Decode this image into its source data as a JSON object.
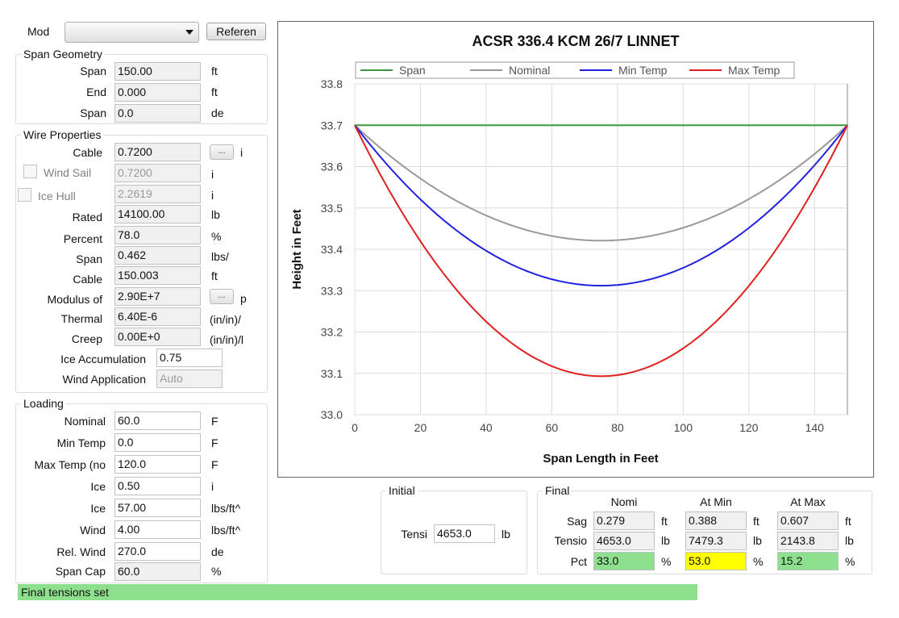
{
  "header": {
    "mode_label": "Mod",
    "mode_value": "",
    "reference_button": "Referen"
  },
  "span_geometry": {
    "title": "Span Geometry",
    "rows": [
      {
        "label": "Span",
        "value": "150.00",
        "unit": "ft"
      },
      {
        "label": "End",
        "value": "0.000",
        "unit": "ft"
      },
      {
        "label": "Span",
        "value": "0.0",
        "unit": "de"
      }
    ]
  },
  "wire_properties": {
    "title": "Wire Properties",
    "cable": {
      "label": "Cable",
      "value": "0.7200",
      "button": "...",
      "unit": "i"
    },
    "wind_sail": {
      "label": "Wind Sail",
      "value": "0.7200",
      "unit": "i"
    },
    "ice_hull": {
      "label": "Ice Hull",
      "value": "2.2619",
      "unit": "i"
    },
    "rated": {
      "label": "Rated",
      "value": "14100.00",
      "unit": "lb"
    },
    "percent": {
      "label": "Percent",
      "value": "78.0",
      "unit": "%"
    },
    "span": {
      "label": "Span",
      "value": "0.462",
      "unit": "lbs/"
    },
    "cable_len": {
      "label": "Cable",
      "value": "150.003",
      "unit": "ft"
    },
    "modulus": {
      "label": "Modulus of",
      "value": "2.90E+7",
      "button": "...",
      "unit": "p"
    },
    "thermal": {
      "label": "Thermal",
      "value": "6.40E-6",
      "unit": "(in/in)/"
    },
    "creep": {
      "label": "Creep",
      "value": "0.00E+0",
      "unit": "(in/in)/l"
    },
    "ice_accumulation": {
      "label": "Ice Accumulation",
      "value": "0.75"
    },
    "wind_application": {
      "label": "Wind Application",
      "value": "Auto"
    }
  },
  "loading": {
    "title": "Loading",
    "rows": [
      {
        "label": "Nominal",
        "value": "60.0",
        "unit": "F"
      },
      {
        "label": "Min Temp",
        "value": "0.0",
        "unit": "F"
      },
      {
        "label": "Max Temp (no",
        "value": "120.0",
        "unit": "F"
      },
      {
        "label": "Ice",
        "value": "0.50",
        "unit": "i"
      },
      {
        "label": "Ice",
        "value": "57.00",
        "unit": "lbs/ft^"
      },
      {
        "label": "Wind",
        "value": "4.00",
        "unit": "lbs/ft^"
      },
      {
        "label": "Rel. Wind",
        "value": "270.0",
        "unit": "de"
      },
      {
        "label": "Span Cap",
        "value": "60.0",
        "unit": "%"
      }
    ]
  },
  "initial": {
    "title": "Initial",
    "tension_label": "Tensi",
    "tension_value": "4653.0",
    "tension_unit": "lb"
  },
  "final": {
    "title": "Final",
    "columns": [
      "Nomi",
      "At Min",
      "At Max"
    ],
    "rows": [
      {
        "label": "Sag",
        "values": [
          "0.279",
          "0.388",
          "0.607"
        ],
        "unit": "ft"
      },
      {
        "label": "Tensio",
        "values": [
          "4653.0",
          "7479.3",
          "2143.8"
        ],
        "unit": "lb"
      },
      {
        "label": "Pct",
        "values": [
          "33.0",
          "53.0",
          "15.2"
        ],
        "unit": "%",
        "colors": [
          "#8ee08e",
          "#ffff00",
          "#8ee08e"
        ]
      }
    ]
  },
  "status": {
    "text": "Final tensions set",
    "color": "#8ee08e"
  },
  "chart_data": {
    "type": "line",
    "title": "ACSR 336.4 KCM 26/7 LINNET",
    "xlabel": "Span Length in Feet",
    "ylabel": "Height in Feet",
    "xlim": [
      0,
      150
    ],
    "ylim": [
      33.0,
      33.8
    ],
    "xticks": [
      "0",
      "20",
      "40",
      "60",
      "80",
      "100",
      "120",
      "140"
    ],
    "yticks": [
      "33.0",
      "33.1",
      "33.2",
      "33.3",
      "33.4",
      "33.5",
      "33.6",
      "33.7",
      "33.8"
    ],
    "grid": true,
    "legend_position": "top",
    "span_length": 150,
    "attachment_height": 33.7,
    "series": [
      {
        "name": "Span",
        "color": "#3c9a3c",
        "sag": 0.0
      },
      {
        "name": "Nominal",
        "color": "#999999",
        "sag": 0.279
      },
      {
        "name": "Min Temp",
        "color": "#2020e0",
        "sag": 0.388
      },
      {
        "name": "Max Temp",
        "color": "#e02020",
        "sag": 0.607
      }
    ]
  }
}
